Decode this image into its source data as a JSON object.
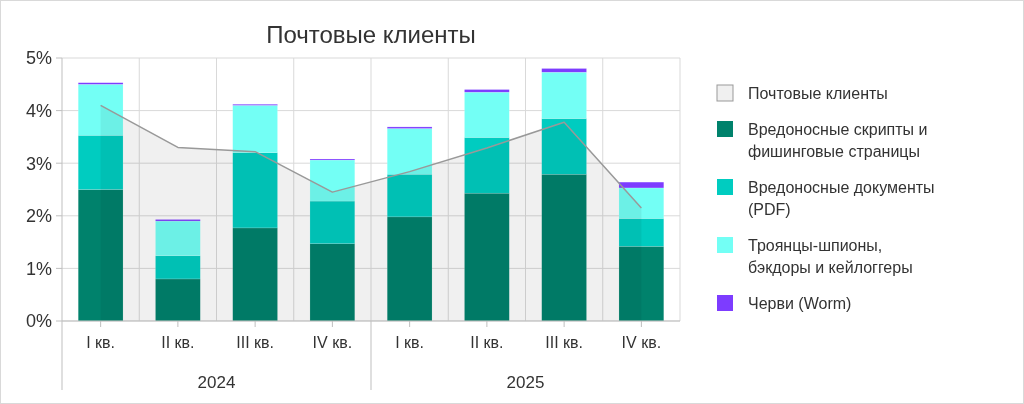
{
  "chart_data": [
    {
      "type": "area",
      "categories": [
        null,
        null,
        null,
        null,
        null,
        null,
        null,
        null
      ],
      "ylim": [
        0,
        5
      ],
      "tick_labels": false,
      "legend": "right",
      "series": [
        {
          "name": "Почтовые клиенты",
          "color": "#999999",
          "values": [
            4.1,
            3.3,
            3.22,
            2.45,
            2.84,
            3.29,
            3.78,
            2.15
          ]
        }
      ]
    },
    {
      "type": "bar",
      "title": "Почтовые клиенты",
      "categories": [
        "I кв.",
        "II кв.",
        "III кв.",
        "IV кв.",
        "I кв.",
        "II кв.",
        "III кв.",
        "IV кв."
      ],
      "annotations": [
        "2024",
        "2025"
      ],
      "stacked": true,
      "ylim": [
        0,
        5
      ],
      "yticks": [
        {
          "value": 0,
          "label": "0%"
        },
        {
          "value": 1,
          "label": "1%"
        },
        {
          "value": 2,
          "label": "2%"
        },
        {
          "value": 3,
          "label": "3%"
        },
        {
          "value": 4,
          "label": "4%"
        },
        {
          "value": 5,
          "label": "5%"
        }
      ],
      "grid": true,
      "legend": "right",
      "series": [
        {
          "name": "Вредоносные скрипты и фишинговые страницы",
          "color": "#00826c",
          "values": [
            2.5,
            0.8,
            1.77,
            1.47,
            1.98,
            2.43,
            2.79,
            1.42
          ]
        },
        {
          "name": "Вредоносные документы (PDF)",
          "color": "#00ccc0",
          "values": [
            1.03,
            0.44,
            1.43,
            0.81,
            0.81,
            1.06,
            1.06,
            0.53
          ]
        },
        {
          "name": "Троянцы-шпионы, бэкдоры и кейлоггеры",
          "color": "#73fff5",
          "values": [
            0.97,
            0.66,
            0.9,
            0.78,
            0.87,
            0.86,
            0.88,
            0.58
          ]
        },
        {
          "name": "Черви (Worm)",
          "color": "#7d3cff",
          "values": [
            0.03,
            0.03,
            0.02,
            0.02,
            0.03,
            0.05,
            0.07,
            0.11
          ]
        }
      ]
    }
  ]
}
